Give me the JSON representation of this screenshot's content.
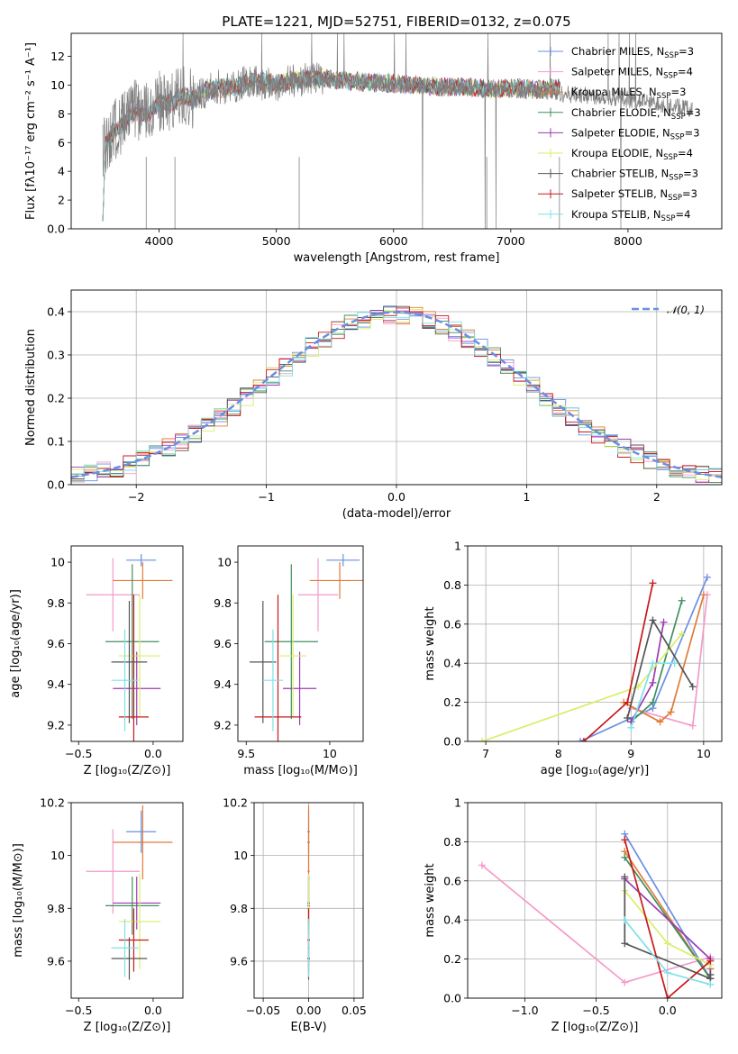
{
  "figure": {
    "title": "PLATE=1221, MJD=52751, FIBERID=0132, z=0.075"
  },
  "chart_data": [
    {
      "id": "spectrum",
      "type": "line",
      "xlabel": "wavelength [Angstrom, rest frame]",
      "ylabel": "Flux [fλ10⁻¹⁷ erg cm⁻² s⁻¹ A⁻¹]",
      "xlim": [
        3250,
        8800
      ],
      "ylim": [
        0,
        13.6
      ],
      "xticks": [
        4000,
        5000,
        6000,
        7000,
        8000
      ],
      "yticks": [
        0,
        2,
        4,
        6,
        8,
        10,
        12
      ],
      "grid": false,
      "legend_position": "right",
      "legend": [
        {
          "name": "Chabrier MILES",
          "nssp": "3",
          "color": "#6a8fe3"
        },
        {
          "name": "Salpeter MILES",
          "nssp": "4",
          "color": "#f49ac9"
        },
        {
          "name": "Kroupa MILES",
          "nssp": "3",
          "color": "#e07b39"
        },
        {
          "name": "Chabrier ELODIE",
          "nssp": "3",
          "color": "#3f8f5f"
        },
        {
          "name": "Salpeter ELODIE",
          "nssp": "3",
          "color": "#9a3cb0"
        },
        {
          "name": "Kroupa ELODIE",
          "nssp": "4",
          "color": "#d9ee6a"
        },
        {
          "name": "Chabrier STELIB",
          "nssp": "3",
          "color": "#555555"
        },
        {
          "name": "Salpeter STELIB",
          "nssp": "3",
          "color": "#c8191c"
        },
        {
          "name": "Kroupa STELIB",
          "nssp": "4",
          "color": "#7fe0e8"
        }
      ],
      "model_continuum": {
        "x": [
          3520,
          3600,
          3700,
          3800,
          3900,
          4000,
          4100,
          4200,
          4300,
          4400,
          4500,
          4600,
          4700,
          4800,
          5000,
          5200,
          5400,
          5600,
          5800,
          6000,
          6200,
          6400,
          6600,
          6800,
          7000,
          7200,
          7400
        ],
        "y": [
          5.6,
          6.6,
          7.4,
          8.2,
          7.9,
          8.8,
          8.7,
          9.3,
          9.0,
          9.7,
          9.8,
          9.8,
          10.0,
          10.3,
          10.1,
          10.4,
          10.5,
          10.3,
          10.2,
          10.1,
          10.0,
          9.9,
          9.9,
          9.7,
          9.8,
          9.7,
          9.8
        ]
      },
      "observed": {
        "x": [
          3520,
          3600,
          3700,
          3800,
          3900,
          4000,
          4100,
          4200,
          4300,
          4400,
          4500,
          4600,
          4700,
          4800,
          5000,
          5200,
          5400,
          5600,
          5800,
          6000,
          6200,
          6400,
          6600,
          6800,
          7000,
          7200,
          7400,
          7600,
          7800,
          8000,
          8200,
          8400,
          8550
        ],
        "y": [
          5.4,
          6.8,
          7.5,
          8.3,
          8.0,
          8.9,
          8.6,
          9.4,
          9.1,
          9.6,
          9.9,
          9.7,
          10.1,
          10.2,
          10.0,
          10.4,
          10.4,
          10.2,
          10.2,
          10.0,
          10.0,
          9.8,
          9.8,
          9.7,
          9.7,
          9.6,
          9.4,
          9.3,
          9.2,
          9.0,
          8.8,
          8.5,
          8.3
        ]
      }
    },
    {
      "id": "residuals",
      "type": "histogram",
      "xlabel": "(data-model)/error",
      "ylabel": "Normed distribution",
      "xlim": [
        -2.5,
        2.5
      ],
      "ylim": [
        0,
        0.45
      ],
      "xticks": [
        -2,
        -1,
        0,
        1,
        2
      ],
      "yticks": [
        0.0,
        0.1,
        0.2,
        0.3,
        0.4
      ],
      "grid": true,
      "legend_position": "top-right",
      "reference_curve": {
        "name": "𝒩(0, 1)",
        "color": "#6a8fe3"
      },
      "bin_width": 0.1,
      "bin_start": -2.5
    },
    {
      "id": "age_vs_Z",
      "type": "errorbar",
      "xlabel": "Z [log₁₀(Z/Z⊙)]",
      "ylabel": "age  [log₁₀(age/yr)]",
      "xlim": [
        -0.55,
        0.2
      ],
      "ylim": [
        9.12,
        10.08
      ],
      "xticks": [
        -0.5,
        0.0
      ],
      "xticklabels": [
        "−0.5",
        "0.0"
      ],
      "yticks": [
        9.2,
        9.4,
        9.6,
        9.8,
        10.0
      ],
      "grid": false
    },
    {
      "id": "age_vs_mass",
      "type": "errorbar",
      "xlabel": "mass [log₁₀(M/M⊙)]",
      "ylabel": "",
      "xlim": [
        9.45,
        10.2
      ],
      "ylim": [
        9.12,
        10.08
      ],
      "xticks": [
        9.5,
        10.0
      ],
      "yticks": [
        9.2,
        9.4,
        9.6,
        9.8,
        10.0
      ],
      "grid": false
    },
    {
      "id": "mass_weight_vs_age",
      "type": "line",
      "xlabel": "age  [log₁₀(age/yr)]",
      "ylabel": "mass weight",
      "xlim": [
        6.75,
        10.25
      ],
      "ylim": [
        0,
        1.0
      ],
      "xticks": [
        7,
        8,
        9,
        10
      ],
      "yticks": [
        0.0,
        0.2,
        0.4,
        0.6,
        0.8,
        1.0
      ],
      "grid": true,
      "series": [
        {
          "color": "#6a8fe3",
          "x": [
            8.3,
            9.3,
            10.05
          ],
          "y": [
            0.0,
            0.17,
            0.84
          ]
        },
        {
          "color": "#f49ac9",
          "x": [
            9.0,
            9.85,
            10.05
          ],
          "y": [
            0.17,
            0.08,
            0.75
          ]
        },
        {
          "color": "#e07b39",
          "x": [
            8.9,
            9.4,
            9.55,
            10.0
          ],
          "y": [
            0.2,
            0.1,
            0.15,
            0.75
          ]
        },
        {
          "color": "#3f8f5f",
          "x": [
            9.0,
            9.3,
            9.7
          ],
          "y": [
            0.1,
            0.2,
            0.72
          ]
        },
        {
          "color": "#9a3cb0",
          "x": [
            9.0,
            9.3,
            9.45
          ],
          "y": [
            0.1,
            0.3,
            0.61
          ]
        },
        {
          "color": "#d9ee6a",
          "x": [
            6.95,
            9.1,
            9.7
          ],
          "y": [
            0.0,
            0.28,
            0.55
          ]
        },
        {
          "color": "#555555",
          "x": [
            8.95,
            9.3,
            9.85
          ],
          "y": [
            0.12,
            0.62,
            0.28
          ]
        },
        {
          "color": "#c8191c",
          "x": [
            8.35,
            8.95,
            9.3
          ],
          "y": [
            0.0,
            0.2,
            0.81
          ]
        },
        {
          "color": "#7fe0e8",
          "x": [
            9.0,
            9.3,
            9.6
          ],
          "y": [
            0.07,
            0.4,
            0.4
          ]
        }
      ]
    },
    {
      "id": "mass_vs_Z",
      "type": "errorbar",
      "xlabel": "Z [log₁₀(Z/Z⊙)]",
      "ylabel": "mass [log₁₀(M/M⊙)]",
      "xlim": [
        -0.55,
        0.2
      ],
      "ylim": [
        9.46,
        10.2
      ],
      "xticks": [
        -0.5,
        0.0
      ],
      "xticklabels": [
        "−0.5",
        "0.0"
      ],
      "yticks": [
        9.6,
        9.8,
        10.0,
        10.2
      ],
      "grid": false
    },
    {
      "id": "mass_vs_EBV",
      "type": "errorbar",
      "xlabel": "E(B-V)",
      "ylabel": "",
      "xlim": [
        -0.06,
        0.06
      ],
      "ylim": [
        9.46,
        10.2
      ],
      "xticks": [
        -0.05,
        0.0,
        0.05
      ],
      "xticklabels": [
        "−0.05",
        "0.00",
        "0.05"
      ],
      "yticks": [
        9.6,
        9.8,
        10.0,
        10.2
      ],
      "grid": true
    },
    {
      "id": "mass_weight_vs_Z",
      "type": "line",
      "xlabel": "Z [log₁₀(Z/Z⊙)]",
      "ylabel": "mass weight",
      "xlim": [
        -1.4,
        0.38
      ],
      "ylim": [
        0,
        1.0
      ],
      "xticks": [
        -1.0,
        -0.5,
        0.0
      ],
      "xticklabels": [
        "−1.0",
        "−0.5",
        "0.0"
      ],
      "yticks": [
        0.0,
        0.2,
        0.4,
        0.6,
        0.8,
        1.0
      ],
      "grid": true,
      "series": [
        {
          "color": "#f49ac9",
          "x": [
            -1.3,
            -0.3,
            0.3,
            0.3
          ],
          "y": [
            0.68,
            0.08,
            0.21,
            0.21
          ]
        },
        {
          "color": "#6a8fe3",
          "x": [
            -0.3,
            0.3,
            0.3
          ],
          "y": [
            0.84,
            0.1,
            0.15
          ]
        },
        {
          "color": "#e07b39",
          "x": [
            -0.3,
            0.3,
            0.3
          ],
          "y": [
            0.75,
            0.1,
            0.15
          ]
        },
        {
          "color": "#3f8f5f",
          "x": [
            -0.3,
            0.3
          ],
          "y": [
            0.72,
            0.1
          ]
        },
        {
          "color": "#9a3cb0",
          "x": [
            -0.3,
            0.3,
            0.3
          ],
          "y": [
            0.61,
            0.2,
            0.1
          ]
        },
        {
          "color": "#d9ee6a",
          "x": [
            -0.3,
            0.0,
            0.3
          ],
          "y": [
            0.55,
            0.28,
            0.17
          ]
        },
        {
          "color": "#555555",
          "x": [
            -0.3,
            -0.3,
            0.3,
            0.3
          ],
          "y": [
            0.62,
            0.28,
            0.1,
            0.12
          ]
        },
        {
          "color": "#c8191c",
          "x": [
            -0.3,
            0.0,
            0.3
          ],
          "y": [
            0.81,
            0.0,
            0.19
          ]
        },
        {
          "color": "#7fe0e8",
          "x": [
            -0.3,
            0.0,
            0.3
          ],
          "y": [
            0.4,
            0.13,
            0.07
          ]
        }
      ]
    }
  ],
  "errorbars": {
    "colors": [
      "#6a8fe3",
      "#f49ac9",
      "#e07b39",
      "#3f8f5f",
      "#9a3cb0",
      "#d9ee6a",
      "#555555",
      "#c8191c",
      "#7fe0e8"
    ],
    "Z": [
      -0.08,
      -0.27,
      -0.07,
      -0.14,
      -0.11,
      -0.09,
      -0.16,
      -0.13,
      -0.19
    ],
    "Z_err": [
      0.1,
      0.18,
      0.2,
      0.18,
      0.16,
      0.14,
      0.12,
      0.1,
      0.09
    ],
    "age": [
      10.01,
      9.84,
      9.91,
      9.61,
      9.38,
      9.54,
      9.51,
      9.24,
      9.42
    ],
    "age_err": [
      0.03,
      0.18,
      0.09,
      0.38,
      0.18,
      0.3,
      0.3,
      0.6,
      0.25
    ],
    "mass": [
      10.08,
      9.93,
      10.06,
      9.77,
      9.82,
      9.78,
      9.6,
      9.69,
      9.66
    ],
    "mass_err": [
      0.1,
      0.12,
      0.18,
      0.16,
      0.1,
      0.08,
      0.08,
      0.14,
      0.06
    ],
    "mass_y": [
      10.09,
      9.94,
      10.05,
      9.81,
      9.82,
      9.75,
      9.61,
      9.68,
      9.65
    ],
    "mass_y_err": [
      0.08,
      0.16,
      0.14,
      0.11,
      0.1,
      0.18,
      0.08,
      0.12,
      0.11
    ],
    "ebv": [
      0.0,
      0.0,
      0.0,
      0.0,
      0.0,
      0.0,
      0.0,
      0.0,
      0.0
    ]
  }
}
